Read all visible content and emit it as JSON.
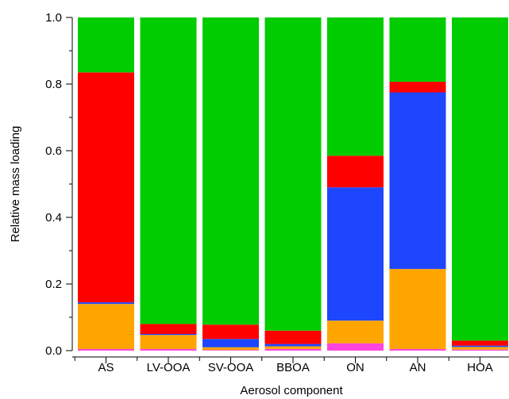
{
  "chart_data": {
    "type": "bar",
    "stacked": true,
    "normalized": true,
    "xlabel": "Aerosol component",
    "ylabel": "Relative mass loading",
    "ylim": [
      0,
      1.0
    ],
    "yticks": [
      "0.0",
      "0.2",
      "0.4",
      "0.6",
      "0.8",
      "1.0"
    ],
    "grid": false,
    "legend": "none",
    "categories": [
      "AS",
      "LV-OOA",
      "SV-OOA",
      "BBOA",
      "ON",
      "AN",
      "HOA"
    ],
    "series": [
      {
        "color": "#ff44dd",
        "values": [
          0.005,
          0.005,
          0.002,
          0.005,
          0.022,
          0.005,
          0.003
        ]
      },
      {
        "color": "#ffa500",
        "values": [
          0.135,
          0.042,
          0.008,
          0.008,
          0.068,
          0.24,
          0.008
        ]
      },
      {
        "color": "#1e46ff",
        "values": [
          0.005,
          0.003,
          0.025,
          0.007,
          0.4,
          0.53,
          0.004
        ]
      },
      {
        "color": "#ff0000",
        "values": [
          0.69,
          0.03,
          0.043,
          0.04,
          0.095,
          0.032,
          0.015
        ]
      },
      {
        "color": "#00cc00",
        "values": [
          0.165,
          0.92,
          0.922,
          0.94,
          0.415,
          0.193,
          0.97
        ]
      }
    ]
  }
}
